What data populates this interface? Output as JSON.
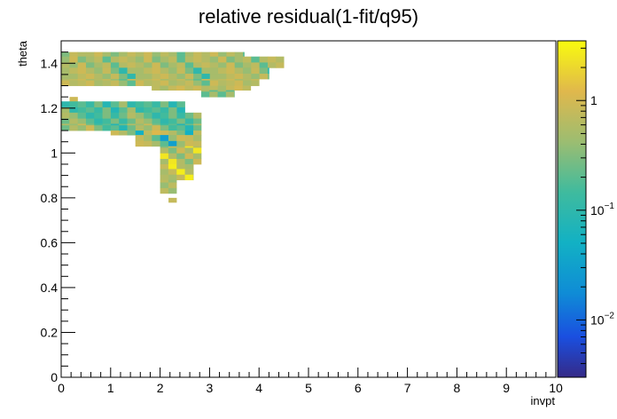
{
  "chart_data": {
    "type": "heatmap",
    "title": "relative residual(1-fit/q95)",
    "xlabel": "invpt",
    "ylabel": "theta",
    "xlim": [
      0,
      10
    ],
    "ylim": [
      0,
      1.5
    ],
    "x_ticks": [
      "0",
      "1",
      "2",
      "3",
      "4",
      "5",
      "6",
      "7",
      "8",
      "9",
      "10"
    ],
    "y_ticks": [
      "0",
      "0.2",
      "0.4",
      "0.6",
      "0.8",
      "1",
      "1.2",
      "1.4"
    ],
    "colorbar": {
      "scale": "log",
      "range": [
        0.003,
        3.5
      ],
      "tick_labels": [
        {
          "value": 1,
          "base": "1",
          "exp": ""
        },
        {
          "value": 0.1,
          "base": "10",
          "exp": "−1"
        },
        {
          "value": 0.01,
          "base": "10",
          "exp": "−2"
        }
      ]
    },
    "bin_size": {
      "x": 0.167,
      "y": 0.025
    },
    "regions": [
      {
        "x0": 0.0,
        "x1": 1.33,
        "y0": 1.43,
        "y1": 1.45,
        "values": [
          0.6,
          0.9,
          0.5,
          0.3,
          0.8,
          0.6
        ]
      },
      {
        "x0": 1.17,
        "x1": 3.7,
        "y0": 1.43,
        "y1": 1.45,
        "values": [
          0.2,
          0.5,
          0.8,
          0.6,
          0.9,
          0.4,
          0.7,
          0.5
        ]
      },
      {
        "x0": 0.0,
        "x1": 4.5,
        "y0": 1.38,
        "y1": 1.43,
        "values": [
          0.8,
          0.6,
          0.4,
          0.9,
          0.3,
          0.5,
          0.7,
          0.2,
          0.6
        ]
      },
      {
        "x0": 0.0,
        "x1": 4.2,
        "y0": 1.33,
        "y1": 1.38,
        "values": [
          0.5,
          0.7,
          0.9,
          0.6,
          0.4,
          0.8,
          0.3,
          0.1,
          0.5
        ]
      },
      {
        "x0": 0.0,
        "x1": 4.0,
        "y0": 1.3,
        "y1": 1.33,
        "values": [
          0.7,
          0.9,
          0.5,
          0.6,
          0.8,
          0.4,
          0.2,
          0.9,
          0.6
        ]
      },
      {
        "x0": 1.83,
        "x1": 3.83,
        "y0": 1.28,
        "y1": 1.3,
        "values": [
          0.9,
          0.6,
          0.7,
          0.5,
          0.8,
          1.0,
          0.7
        ]
      },
      {
        "x0": 2.83,
        "x1": 3.5,
        "y0": 1.25,
        "y1": 1.28,
        "values": [
          0.2,
          0.5
        ]
      },
      {
        "x0": 0.17,
        "x1": 0.33,
        "y0": 1.23,
        "y1": 1.25,
        "values": [
          0.9
        ]
      },
      {
        "x0": 0.0,
        "x1": 2.5,
        "y0": 1.18,
        "y1": 1.23,
        "values": [
          0.1,
          0.15,
          0.2,
          0.12,
          0.3,
          0.08,
          0.2,
          0.5
        ]
      },
      {
        "x0": 0.0,
        "x1": 2.83,
        "y0": 1.13,
        "y1": 1.18,
        "values": [
          0.2,
          0.1,
          0.15,
          0.3,
          0.12,
          0.25,
          0.6,
          0.4
        ]
      },
      {
        "x0": 0.0,
        "x1": 2.83,
        "y0": 1.1,
        "y1": 1.13,
        "values": [
          0.3,
          0.15,
          0.2,
          0.08,
          0.25,
          0.6,
          0.4,
          0.9
        ]
      },
      {
        "x0": 1.0,
        "x1": 2.83,
        "y0": 1.08,
        "y1": 1.1,
        "values": [
          1.2,
          0.9,
          0.6,
          0.3,
          0.05,
          0.7
        ]
      },
      {
        "x0": 1.5,
        "x1": 2.83,
        "y0": 1.03,
        "y1": 1.08,
        "values": [
          0.8,
          0.5,
          0.2,
          0.03,
          0.4,
          0.9
        ]
      },
      {
        "x0": 2.0,
        "x1": 2.83,
        "y0": 0.95,
        "y1": 1.03,
        "values": [
          0.6,
          0.3,
          0.9,
          0.5,
          2.5
        ]
      },
      {
        "x0": 2.0,
        "x1": 2.67,
        "y0": 0.88,
        "y1": 0.95,
        "values": [
          0.5,
          0.8,
          2.8,
          0.6
        ]
      },
      {
        "x0": 2.0,
        "x1": 2.33,
        "y0": 0.82,
        "y1": 0.88,
        "values": [
          0.4,
          0.7
        ]
      },
      {
        "x0": 2.17,
        "x1": 2.33,
        "y0": 0.78,
        "y1": 0.8,
        "values": [
          0.8
        ]
      }
    ]
  }
}
